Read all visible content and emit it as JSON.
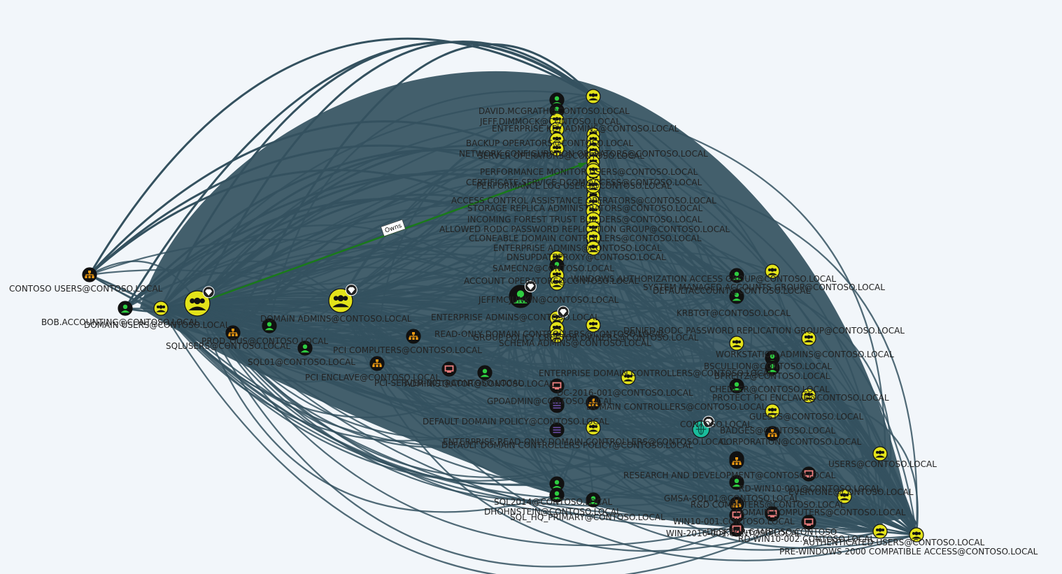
{
  "graph": {
    "edge_label": "Owns",
    "colors": {
      "background": "#f2f6fa",
      "edge": "#34515f",
      "owns_edge": "#1a7a1a",
      "user": "#2ecc40",
      "group": "#e3e31a",
      "ou": "#f39c12",
      "computer": "#f08080",
      "gpo": "#6b4ea8",
      "domain": "#1abc9c"
    },
    "nodes": [
      {
        "id": "contoso-users",
        "type": "ou",
        "label": "CONTOSO USERS@CONTOSO.LOCAL"
      },
      {
        "id": "bob-accounting",
        "type": "user",
        "label": "BOB.ACCOUNTING@CONTOSO.LOCAL"
      },
      {
        "id": "domain-users",
        "type": "group",
        "label": "DOMAIN USERS@CONTOSO.LOCAL"
      },
      {
        "id": "owner-group",
        "type": "group",
        "label": "",
        "highvalue": true
      },
      {
        "id": "domain-admins",
        "type": "group",
        "label": "DOMAIN ADMINS@CONTOSO.LOCAL",
        "highvalue": true
      },
      {
        "id": "sqlusers",
        "type": "user",
        "label": "SQLUSERS@CONTOSO.LOCAL"
      },
      {
        "id": "accounting-ou",
        "type": "ou",
        "label": "PROD_OUS@CONTOSO.LOCAL"
      },
      {
        "id": "sql01",
        "type": "user",
        "label": "SQL01@CONTOSO.LOCAL"
      },
      {
        "id": "pci-computers",
        "type": "ou",
        "label": "PCI COMPUTERS@CONTOSO.LOCAL"
      },
      {
        "id": "pci-enclave",
        "type": "ou",
        "label": "PCI ENCLAVE@CONTOSO.LOCAL"
      },
      {
        "id": "pci-server",
        "type": "computer",
        "label": "PCI-SERVER-001@CONTOSO.LOCAL"
      },
      {
        "id": "administrator",
        "type": "user",
        "label": "ADMINISTRATOR@CONTOSO.LOCAL"
      },
      {
        "id": "david-mcgrath",
        "type": "user",
        "label": "DAVID.MCGRATH@CONTOSO.LOCAL"
      },
      {
        "id": "jeff-dimmock",
        "type": "user",
        "label": "JEFF.DIMMOCK@CONTOSO.LOCAL"
      },
      {
        "id": "enterprise-keyadmins",
        "type": "group",
        "label": "ENTERPRISE KEY ADMINS@CONTOSO.LOCAL"
      },
      {
        "id": "backup-operators",
        "type": "group",
        "label": "BACKUP OPERATORS@CONTOSO.LOCAL"
      },
      {
        "id": "network-config",
        "type": "group",
        "label": "NETWORK CONFIGURATION OPERATORS@CONTOSO.LOCAL"
      },
      {
        "id": "server-operators",
        "type": "group",
        "label": "SERVER OPERATORS@CONTOSO.LOCAL"
      },
      {
        "id": "certificate-service",
        "type": "group",
        "label": "CERTIFICATE SERVICE DCOM ACCESS@CONTOSO.LOCAL"
      },
      {
        "id": "perf-monitor",
        "type": "group",
        "label": "PERFORMANCE MONITOR USERS@CONTOSO.LOCAL"
      },
      {
        "id": "perf-log",
        "type": "group",
        "label": "PERFORMANCE LOG USERS@CONTOSO.LOCAL"
      },
      {
        "id": "access-control",
        "type": "group",
        "label": "ACCESS CONTROL ASSISTANCE OPERATORS@CONTOSO.LOCAL"
      },
      {
        "id": "storage-replica",
        "type": "group",
        "label": "STORAGE REPLICA ADMINISTRATORS@CONTOSO.LOCAL"
      },
      {
        "id": "incoming-forest",
        "type": "group",
        "label": "INCOMING FOREST TRUST BUILDERS@CONTOSO.LOCAL"
      },
      {
        "id": "allowed-rodc",
        "type": "group",
        "label": "ALLOWED RODC PASSWORD REPLICATION GROUP@CONTOSO.LOCAL"
      },
      {
        "id": "cloneable-dc",
        "type": "group",
        "label": "CLONEABLE DOMAIN CONTROLLERS@CONTOSO.LOCAL"
      },
      {
        "id": "enterprise-admins-top",
        "type": "group",
        "label": "ENTERPRISE ADMINS@CONTOSO.LOCAL"
      },
      {
        "id": "dnsupdate",
        "type": "group",
        "label": "DNSUPDATEPROXY@CONTOSO.LOCAL"
      },
      {
        "id": "samecn",
        "type": "user",
        "label": "SAMECN2@CONTOSO.LOCAL"
      },
      {
        "id": "account-operators",
        "type": "group",
        "label": "ACCOUNT OPERATORS@CONTOSO.LOCAL"
      },
      {
        "id": "windows-auth",
        "type": "group",
        "label": "WINDOWS AUTHORIZATION ACCESS GROUP@CONTOSO.LOCAL"
      },
      {
        "id": "jeffmcjunkin",
        "type": "user",
        "label": "JEFFMCJUNKIN@CONTOSO.LOCAL",
        "highvalue": true
      },
      {
        "id": "enterprise-admins",
        "type": "group",
        "label": "ENTERPRISE ADMINS@CONTOSO.LOCAL",
        "highvalue": true
      },
      {
        "id": "read-only-dc",
        "type": "group",
        "label": "READ-ONLY DOMAIN CONTROLLERS@CONTOSO.LOCAL"
      },
      {
        "id": "group-policy",
        "type": "group",
        "label": "GROUP POLICY CREATOR OWNERS@CONTOSO.LOCAL"
      },
      {
        "id": "schema-admins",
        "type": "group",
        "label": "SCHEMA ADMINS@CONTOSO.LOCAL"
      },
      {
        "id": "enterprise-dc",
        "type": "group",
        "label": "ENTERPRISE DOMAIN CONTROLLERS@CONTOSO.LOCAL"
      },
      {
        "id": "dc-2016",
        "type": "computer",
        "label": "DC-2016-001@CONTOSO.LOCAL"
      },
      {
        "id": "gpoadmin",
        "type": "user",
        "label": "GPOADMIN@CONTOSO.LOCAL"
      },
      {
        "id": "default-domain",
        "type": "gpo",
        "label": "DEFAULT DOMAIN POLICY@CONTOSO.LOCAL"
      },
      {
        "id": "domain-controllers-ou",
        "type": "ou",
        "label": "DOMAIN CONTROLLERS@CONTOSO.LOCAL"
      },
      {
        "id": "default-dc-policy",
        "type": "gpo",
        "label": "DEFAULT DOMAIN CONTROLLERS POLICY@CONTOSO.LOCAL"
      },
      {
        "id": "enterprise-ro-dc",
        "type": "group",
        "label": "ENTERPRISE READ-ONLY DOMAIN CONTROLLERS@CONTOSO.LOCAL"
      },
      {
        "id": "contoso-local",
        "type": "domain",
        "label": "CONTOSO.LOCAL",
        "highvalue": true
      },
      {
        "id": "sql2014",
        "type": "user",
        "label": "SQL2014@CONTOSO.LOCAL"
      },
      {
        "id": "dhohnstein",
        "type": "user",
        "label": "DHOHNSTEIN@CONTOSO.LOCAL"
      },
      {
        "id": "sql-hq",
        "type": "user",
        "label": "SQL_HQ_PRIMARY@CONTOSO.LOCAL"
      },
      {
        "id": "system-managed",
        "type": "group",
        "label": "SYSTEM MANAGED ACCOUNTS GROUP@CONTOSO.LOCAL"
      },
      {
        "id": "defaultaccount",
        "type": "user",
        "label": "DEFAULTACCOUNT@CONTOSO.LOCAL"
      },
      {
        "id": "krbtgt",
        "type": "user",
        "label": "KRBTGT@CONTOSO.LOCAL"
      },
      {
        "id": "denied-rodc",
        "type": "group",
        "label": "DENIED RODC PASSWORD REPLICATION GROUP@CONTOSO.LOCAL"
      },
      {
        "id": "workstation-admins",
        "type": "group",
        "label": "WORKSTATION ADMINS@CONTOSO.LOCAL"
      },
      {
        "id": "bscullion",
        "type": "user",
        "label": "BSCULLION@CONTOSO.LOCAL"
      },
      {
        "id": "bpreitz",
        "type": "user",
        "label": "BPREITZ@CONTOSO.LOCAL"
      },
      {
        "id": "chedler",
        "type": "user",
        "label": "CHEDLER@CONTOSO.LOCAL"
      },
      {
        "id": "protect-pci",
        "type": "group",
        "label": "PROTECT PCI ENCLAVE@CONTOSO.LOCAL"
      },
      {
        "id": "guests",
        "type": "group",
        "label": "GUESTS@CONTOSO.LOCAL"
      },
      {
        "id": "badges",
        "type": "ou",
        "label": "BADGES@CONTOSO.LOCAL"
      },
      {
        "id": "corp-ou",
        "type": "ou",
        "label": "CORPORATION@CONTOSO.LOCAL"
      },
      {
        "id": "rnd-ou",
        "type": "ou",
        "label": "RESEARCH AND DEVELOPMENT@CONTOSO.LOCAL"
      },
      {
        "id": "rd-win10-001",
        "type": "computer",
        "label": "RD-WIN10-001@CONTOSO.LOCAL"
      },
      {
        "id": "gmsa-sql01",
        "type": "user",
        "label": "GMSA-SQL01@CONTOSO.LOCAL"
      },
      {
        "id": "rnd-computers",
        "type": "ou",
        "label": "R&D COMPUTERS@CONTOSO.LOCAL"
      },
      {
        "id": "domain-computers",
        "type": "group",
        "label": "DOMAIN COMPUTERS@CONTOSO.LOCAL"
      },
      {
        "id": "win10-001",
        "type": "computer",
        "label": "WIN10-001.CONTOSO.LOCAL"
      },
      {
        "id": "desktop",
        "type": "computer",
        "label": "DESKTOP-GAMBOSO.CONTOSO"
      },
      {
        "id": "win-2016",
        "type": "computer",
        "label": "WIN-2016-001.CONTOSO.LOCAL"
      },
      {
        "id": "rd-win10-002",
        "type": "computer",
        "label": "RD-WIN10-002.CONTOSO.LOCAL"
      },
      {
        "id": "authenticated-users",
        "type": "group",
        "label": "AUTHENTICATED USERS@CONTOSO.LOCAL"
      },
      {
        "id": "pre-windows",
        "type": "group",
        "label": "PRE-WINDOWS 2000 COMPATIBLE ACCESS@CONTOSO.LOCAL"
      },
      {
        "id": "everyone",
        "type": "group",
        "label": "EVERYONE@CONTOSO.LOCAL"
      },
      {
        "id": "users-group",
        "type": "group",
        "label": "USERS@CONTOSO.LOCAL"
      },
      {
        "id": "top-group",
        "type": "group",
        "label": ""
      }
    ]
  }
}
